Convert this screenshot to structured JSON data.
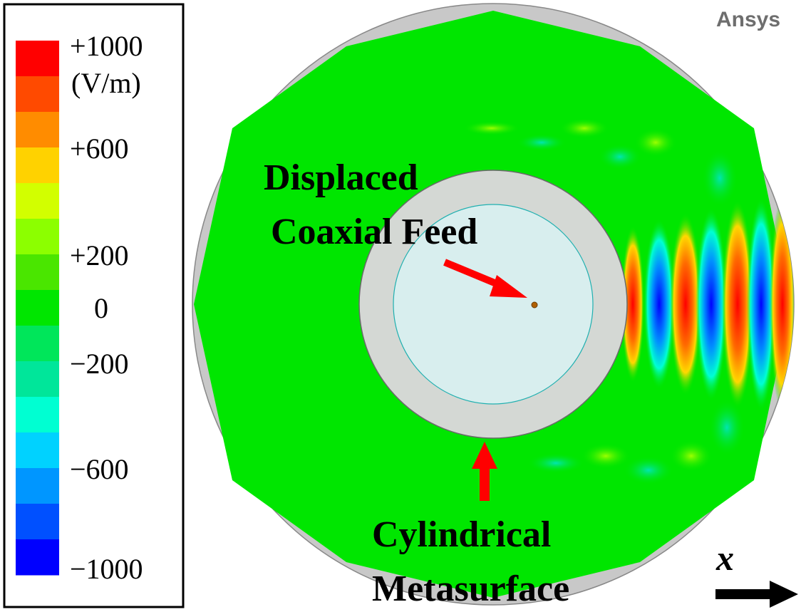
{
  "watermark": "Ansys",
  "colorbar": {
    "unit": "(V/m)",
    "labels": [
      "+1000",
      "+600",
      "+200",
      "0",
      "−200",
      "−600",
      "−1000"
    ],
    "bands": [
      "#ff0000",
      "#ff4a00",
      "#ff8c00",
      "#ffd200",
      "#d2ff00",
      "#8cff00",
      "#4ae600",
      "#00e600",
      "#00e65a",
      "#00e69a",
      "#00ffd2",
      "#00d2ff",
      "#0096ff",
      "#0050ff",
      "#0000ff"
    ]
  },
  "annotations": {
    "feed_line1": "Displaced",
    "feed_line2": "Coaxial Feed",
    "metasurface_line1": "Cylindrical",
    "metasurface_line2": "Metasurface",
    "axis_label": "x"
  },
  "colors": {
    "background_field": "#00e600",
    "domain_border": "#c8c8c8",
    "metasurface_ring": "#d4d8d4",
    "inner_region": "#d8eeee",
    "arrow": "#ff0000",
    "positive": "#ff0000",
    "negative": "#0000ff"
  }
}
